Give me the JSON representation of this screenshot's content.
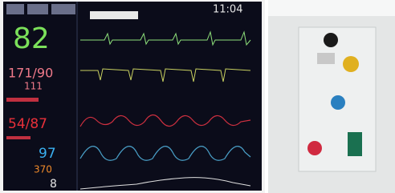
{
  "monitor": {
    "time": "11:04",
    "heart_rate": "82",
    "blood_pressure": "171/90",
    "bp_mean": "111",
    "arterial_pressure": "54/87",
    "spo2": "97",
    "respiration": "370",
    "temperature": "8"
  }
}
